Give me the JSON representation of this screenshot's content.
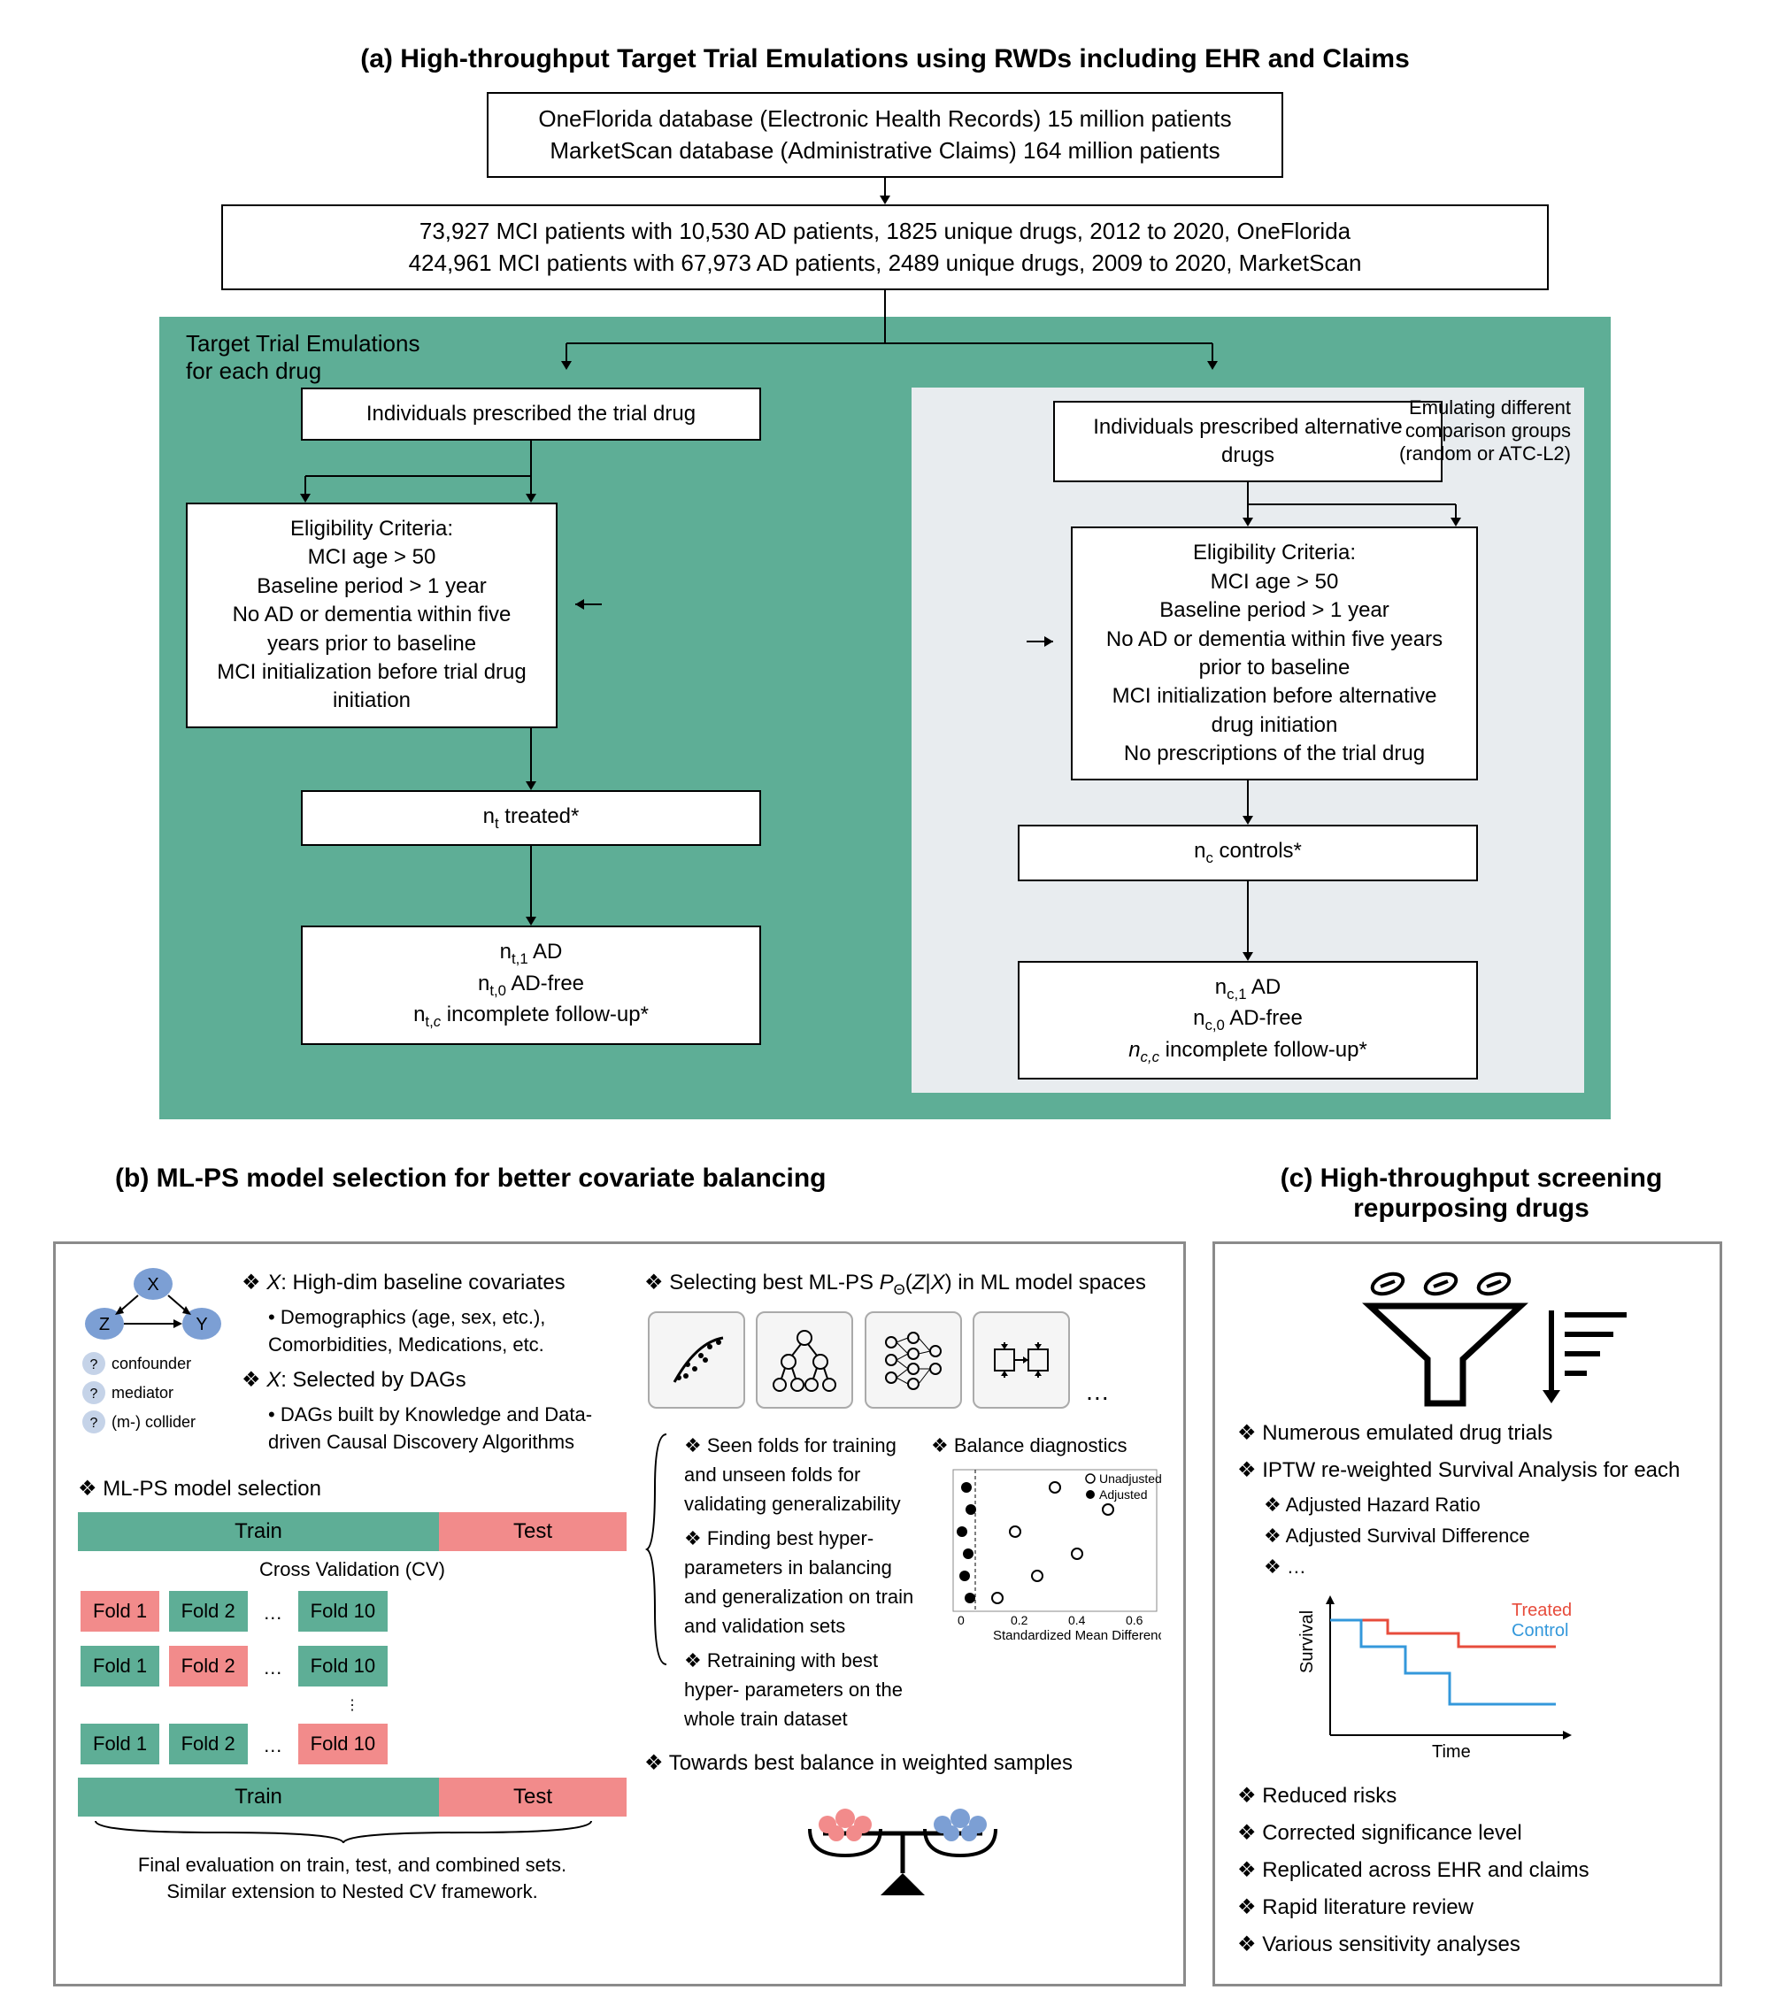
{
  "partA": {
    "title": "(a) High-throughput Target Trial Emulations using RWDs including EHR and Claims",
    "db_box": "OneFlorida database (Electronic Health Records) 15 million patients\nMarketScan database (Administrative Claims) 164 million patients",
    "cohort_box": "73,927 MCI patients with 10,530 AD patients, 1825 unique drugs, 2012 to 2020, OneFlorida\n424,961 MCI patients with 67,973 AD patients, 2489 unique drugs, 2009 to 2020, MarketScan",
    "green_label": "Target Trial Emulations\nfor each drug",
    "grey_label": "Emulating different\ncomparison groups\n(random or ATC-L2)",
    "left": {
      "prescribed": "Individuals prescribed the trial drug",
      "eligibility": "Eligibility Criteria:\nMCI age > 50\nBaseline period > 1 year\nNo AD or dementia within five\nyears prior to baseline\nMCI initialization before trial drug\ninitiation",
      "treated": "nₜ treated*",
      "outcomes": "nₜ,₁ AD\nnₜ,₀ AD-free\nnₜ,c incomplete follow-up*"
    },
    "right": {
      "prescribed": "Individuals prescribed alternative\ndrugs",
      "eligibility": "Eligibility Criteria:\nMCI age > 50\nBaseline period > 1 year\nNo AD or dementia within five years\nprior to baseline\nMCI initialization before alternative\ndrug initiation\nNo prescriptions of the trial drug",
      "controls": "n_c controls*",
      "outcomes": "n_c,1 AD\nn_c,0 AD-free\nn_c,c incomplete follow-up*"
    }
  },
  "partB": {
    "title": "(b) ML-PS model selection for better covariate balancing",
    "x_highdim": "X: High-dim baseline covariates",
    "x_highdim_sub": "Demographics (age, sex, etc.), Comorbidities, Medications, etc.",
    "x_dags": "X: Selected by DAGs",
    "x_dags_sub": "DAGs built by Knowledge and Data-driven Causal Discovery Algorithms",
    "mlps_label": "ML-PS model selection",
    "selecting": "Selecting best ML-PS P_Θ(Z|X) in ML model spaces",
    "balance_diag": "Balance diagnostics",
    "smd_label": "Standardized Mean Difference",
    "unadjusted": "Unadjusted",
    "adjusted": "Adjusted",
    "towards": "Towards best balance in weighted samples",
    "train": "Train",
    "test": "Test",
    "cv_label": "Cross Validation (CV)",
    "fold1": "Fold 1",
    "fold2": "Fold 2",
    "fold10": "Fold 10",
    "cv_bullets": {
      "b1": "Seen folds for training and unseen folds for validating generalizability",
      "b2": "Finding best hyper-parameters in balancing and generalization on train and validation sets",
      "b3": "Retraining with best hyper- parameters on the whole train dataset"
    },
    "final_eval": "Final evaluation on train, test, and combined sets.\nSimilar extension to Nested CV framework.",
    "dag_labels": {
      "z": "Z",
      "x": "X",
      "y": "Y",
      "confounder": "confounder",
      "mediator": "mediator",
      "collider": "(m-) collider"
    },
    "smd_ticks": [
      "0",
      "0.2",
      "0.4",
      "0.6"
    ]
  },
  "partC": {
    "title": "(c) High-throughput screening\nrepurposing drugs",
    "b1": "Numerous emulated drug trials",
    "b2": "IPTW re-weighted Survival Analysis for each",
    "b2a": "Adjusted Hazard Ratio",
    "b2b": "Adjusted Survival Difference",
    "b2c": "…",
    "treated": "Treated",
    "control": "Control",
    "survival": "Survival",
    "time": "Time",
    "b3": "Reduced risks",
    "b4": "Corrected significance level",
    "b5": "Replicated across EHR and claims",
    "b6": "Rapid literature review",
    "b7": "Various sensitivity analyses"
  },
  "colors": {
    "green": "#5eae96",
    "pink": "#f28b8b",
    "grey_panel": "#e8ecef",
    "border_grey": "#8a8a8a",
    "treated_red": "#e74c3c",
    "control_blue": "#3498db",
    "node_blue": "#7c9fd4",
    "node_light": "#c5d3e8"
  }
}
